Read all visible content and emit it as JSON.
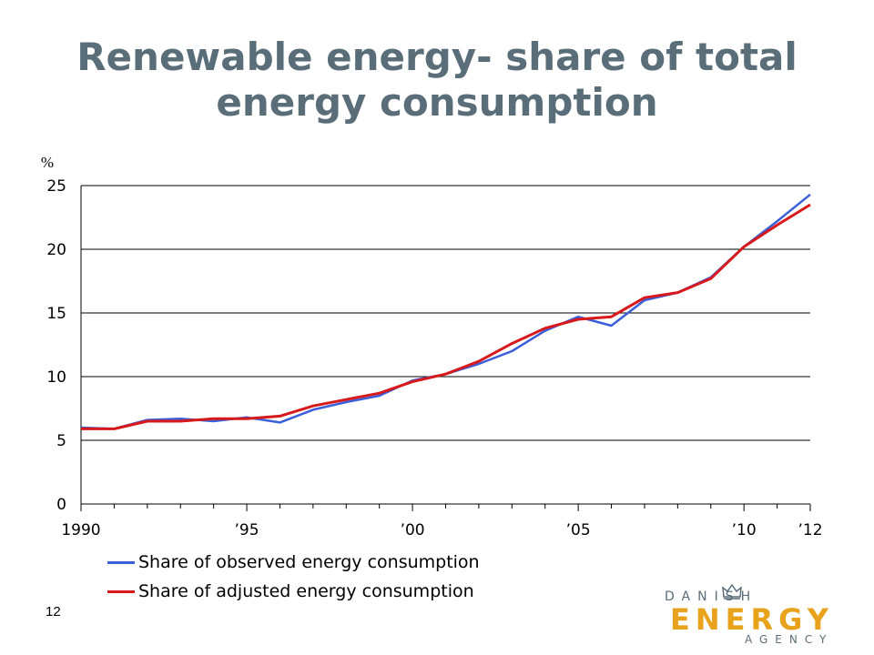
{
  "slide": {
    "title_line1": "Renewable energy- share of total",
    "title_line2": "energy consumption",
    "page_number": "12"
  },
  "logo": {
    "top": "DANISH",
    "main": "ENERGY",
    "bottom": "AGENCY",
    "colors": {
      "grey": "#5a6e79",
      "orange": "#e8a21c"
    }
  },
  "chart_data": {
    "type": "line",
    "title": "",
    "xlabel": "",
    "ylabel": "%",
    "ylim": [
      0,
      25
    ],
    "yticks": [
      0,
      5,
      10,
      15,
      20,
      25
    ],
    "xlim": [
      1990,
      2012
    ],
    "xtick_labels": [
      {
        "x": 1990,
        "label": "1990"
      },
      {
        "x": 1995,
        "label": "’95"
      },
      {
        "x": 2000,
        "label": "’00"
      },
      {
        "x": 2005,
        "label": "’05"
      },
      {
        "x": 2010,
        "label": "’10"
      },
      {
        "x": 2012,
        "label": "’12"
      }
    ],
    "grid": "horizontal",
    "legend_position": "bottom-left",
    "x": [
      1990,
      1991,
      1992,
      1993,
      1994,
      1995,
      1996,
      1997,
      1998,
      1999,
      2000,
      2001,
      2002,
      2003,
      2004,
      2005,
      2006,
      2007,
      2008,
      2009,
      2010,
      2011,
      2012
    ],
    "series": [
      {
        "name": "Share of observed energy consumption",
        "color": "#3a5fd9",
        "values": [
          6.0,
          5.9,
          6.6,
          6.7,
          6.5,
          6.8,
          6.4,
          7.4,
          8.0,
          8.5,
          9.7,
          10.2,
          11.0,
          12.0,
          13.6,
          14.7,
          14.0,
          16.0,
          16.6,
          17.8,
          20.2,
          22.2,
          24.3
        ]
      },
      {
        "name": "Share of adjusted energy consumption",
        "color": "#d7191c",
        "values": [
          5.9,
          5.9,
          6.5,
          6.5,
          6.7,
          6.7,
          6.9,
          7.7,
          8.2,
          8.7,
          9.6,
          10.2,
          11.2,
          12.6,
          13.8,
          14.5,
          14.7,
          16.2,
          16.6,
          17.7,
          20.2,
          21.9,
          23.5
        ]
      }
    ]
  }
}
